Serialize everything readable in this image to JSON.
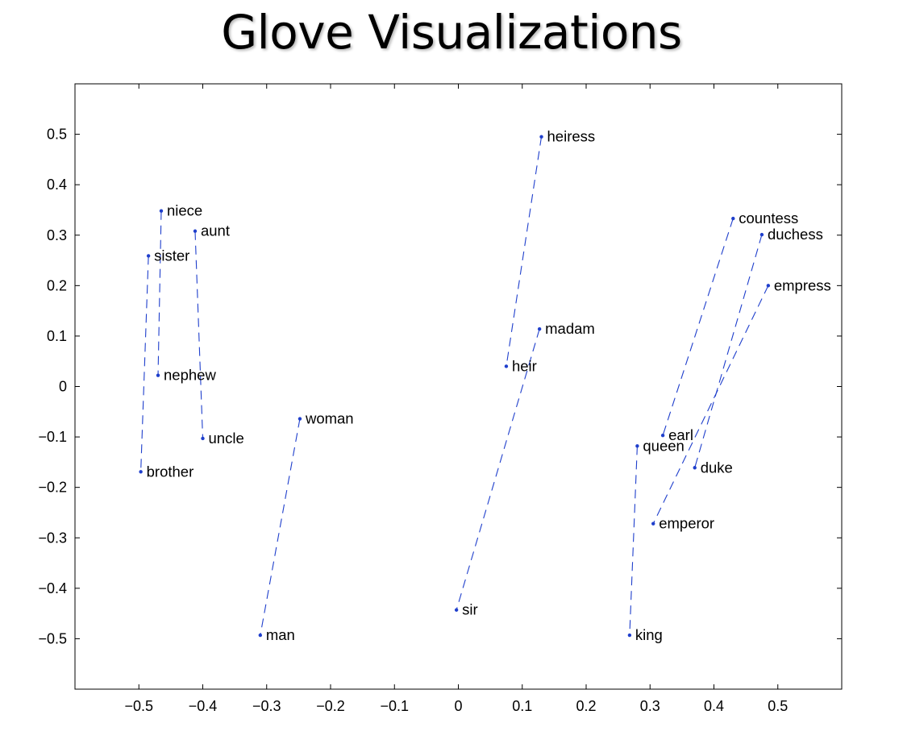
{
  "title": "Glove Visualizations",
  "chart_data": {
    "type": "scatter",
    "xlim": [
      -0.6,
      0.6
    ],
    "ylim": [
      -0.6,
      0.6
    ],
    "xticks": [
      -0.5,
      -0.4,
      -0.3,
      -0.2,
      -0.1,
      0,
      0.1,
      0.2,
      0.3,
      0.4,
      0.5
    ],
    "yticks": [
      -0.5,
      -0.4,
      -0.3,
      -0.2,
      -0.1,
      0,
      0.1,
      0.2,
      0.3,
      0.4,
      0.5
    ],
    "xtick_labels": [
      "−0.5",
      "−0.4",
      "−0.3",
      "−0.2",
      "−0.1",
      "0",
      "0.1",
      "0.2",
      "0.3",
      "0.4",
      "0.5"
    ],
    "ytick_labels": [
      "−0.5",
      "−0.4",
      "−0.3",
      "−0.2",
      "−0.1",
      "0",
      "0.1",
      "0.2",
      "0.3",
      "0.4",
      "0.5"
    ],
    "grid": false,
    "point_color": "#1f3fcc",
    "line_color": "#1f3fcc",
    "line_style": "dashed",
    "points": [
      {
        "label": "heiress",
        "x": 0.13,
        "y": 0.495
      },
      {
        "label": "niece",
        "x": -0.465,
        "y": 0.348
      },
      {
        "label": "countess",
        "x": 0.43,
        "y": 0.333
      },
      {
        "label": "aunt",
        "x": -0.412,
        "y": 0.308
      },
      {
        "label": "duchess",
        "x": 0.475,
        "y": 0.301
      },
      {
        "label": "sister",
        "x": -0.485,
        "y": 0.259
      },
      {
        "label": "empress",
        "x": 0.485,
        "y": 0.2
      },
      {
        "label": "madam",
        "x": 0.127,
        "y": 0.114
      },
      {
        "label": "heir",
        "x": 0.075,
        "y": 0.04
      },
      {
        "label": "nephew",
        "x": -0.47,
        "y": 0.022
      },
      {
        "label": "woman",
        "x": -0.248,
        "y": -0.064
      },
      {
        "label": "earl",
        "x": 0.32,
        "y": -0.097
      },
      {
        "label": "uncle",
        "x": -0.4,
        "y": -0.103
      },
      {
        "label": "queen",
        "x": 0.28,
        "y": -0.118
      },
      {
        "label": "duke",
        "x": 0.37,
        "y": -0.161
      },
      {
        "label": "brother",
        "x": -0.497,
        "y": -0.169
      },
      {
        "label": "emperor",
        "x": 0.305,
        "y": -0.272
      },
      {
        "label": "sir",
        "x": -0.003,
        "y": -0.443
      },
      {
        "label": "man",
        "x": -0.31,
        "y": -0.493
      },
      {
        "label": "king",
        "x": 0.268,
        "y": -0.493
      }
    ],
    "pairs": [
      [
        "heiress",
        "heir"
      ],
      [
        "madam",
        "sir"
      ],
      [
        "niece",
        "nephew"
      ],
      [
        "aunt",
        "uncle"
      ],
      [
        "sister",
        "brother"
      ],
      [
        "woman",
        "man"
      ],
      [
        "countess",
        "earl"
      ],
      [
        "duchess",
        "duke"
      ],
      [
        "empress",
        "emperor"
      ],
      [
        "queen",
        "king"
      ]
    ]
  }
}
